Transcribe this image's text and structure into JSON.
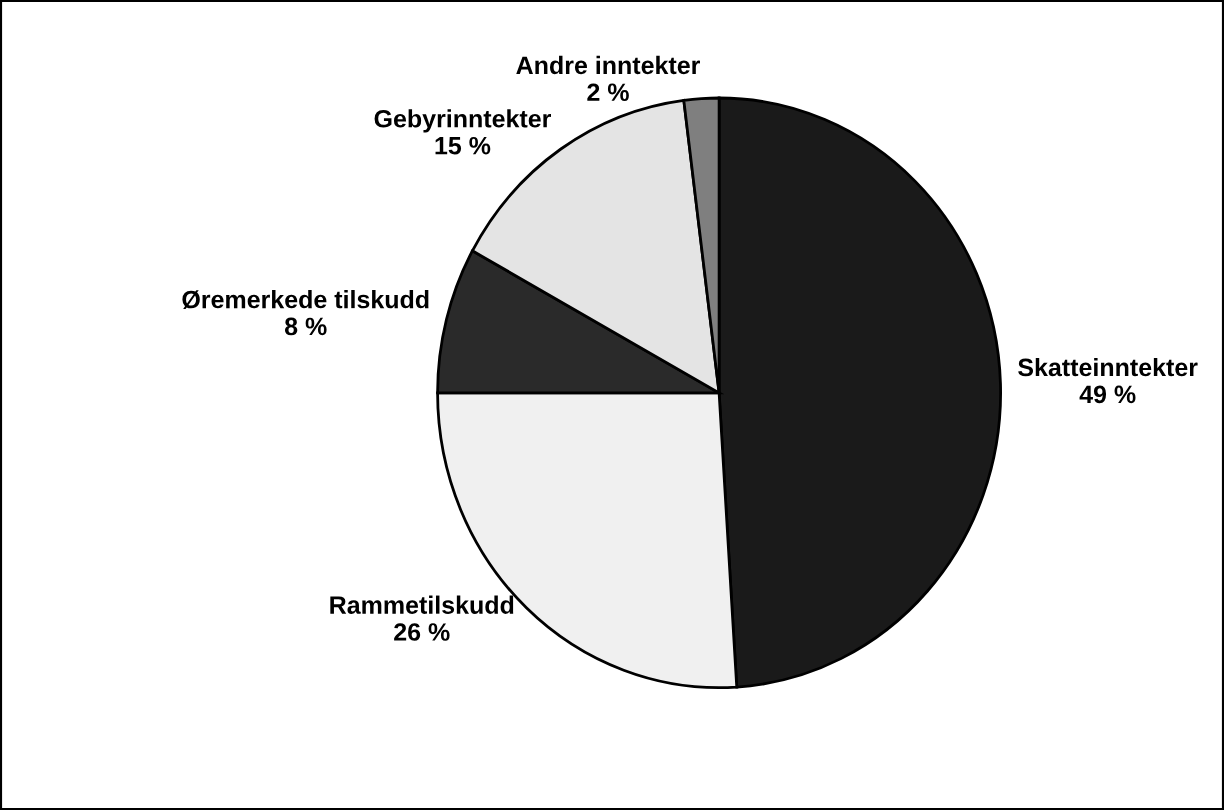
{
  "chart_data": {
    "type": "pie",
    "categories": [
      "Skatteinntekter",
      "Rammetilskudd",
      "Øremerkede tilskudd",
      "Gebyrinntekter",
      "Andre inntekter"
    ],
    "values": [
      49,
      26,
      8,
      15,
      2
    ],
    "value_labels": [
      "49 %",
      "26 %",
      "8 %",
      "15 %",
      "2 %"
    ],
    "colors": [
      "#1a1a1a",
      "#f0f0f0",
      "#2a2a2a",
      "#e4e4e4",
      "#7f7f7f"
    ]
  }
}
